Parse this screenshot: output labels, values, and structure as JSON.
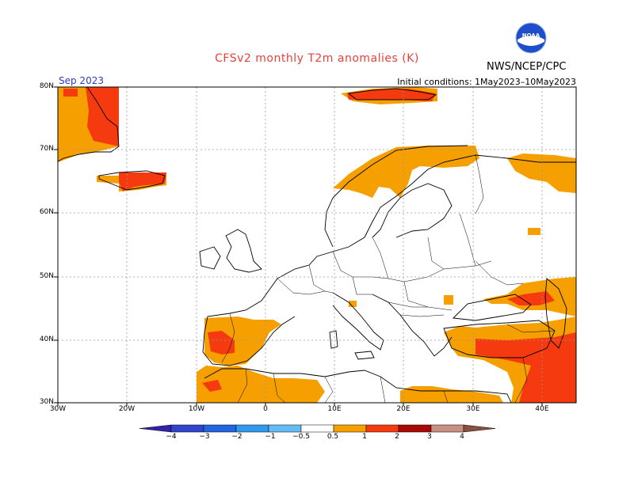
{
  "title": "CFSv2 monthly T2m anomalies (K)",
  "organization": "NWS/NCEP/CPC",
  "logo_text": "NOAA",
  "month": "Sep 2023",
  "initial_conditions": "Initial conditions: 1May2023–10May2023",
  "latitude_labels": [
    "80N",
    "70N",
    "60N",
    "50N",
    "40N",
    "30N"
  ],
  "longitude_labels": [
    "30W",
    "20W",
    "10W",
    "0",
    "10E",
    "20E",
    "30E",
    "40E"
  ],
  "colorbar": {
    "labels": [
      "−4",
      "−3",
      "−2",
      "−1",
      "−0.5",
      "0.5",
      "1",
      "2",
      "3",
      "4"
    ],
    "colors": [
      "#3322aa",
      "#3344cc",
      "#2266dd",
      "#3399ee",
      "#66bbf5",
      "#ffffff",
      "#f5a000",
      "#f53a10",
      "#a80a05",
      "#c89080",
      "#8a5040"
    ]
  },
  "map_data": {
    "projection": "latitude-longitude",
    "extent_lon": [
      -30,
      45
    ],
    "extent_lat": [
      30,
      80
    ],
    "grid": true,
    "field": "2 m temperature anomaly (K)"
  }
}
